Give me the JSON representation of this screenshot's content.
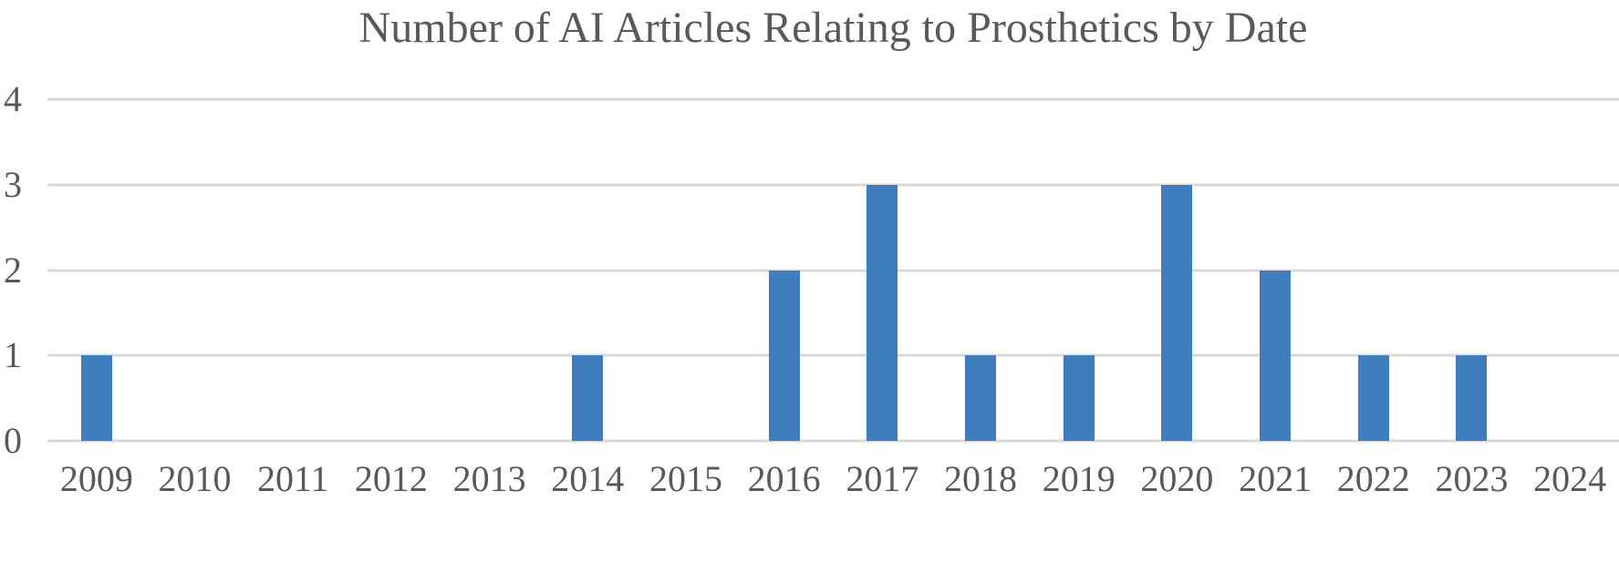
{
  "chart_data": {
    "type": "bar",
    "title": "Number of AI Articles Relating to Prosthetics by Date",
    "categories": [
      "2009",
      "2010",
      "2011",
      "2012",
      "2013",
      "2014",
      "2015",
      "2016",
      "2017",
      "2018",
      "2019",
      "2020",
      "2021",
      "2022",
      "2023",
      "2024"
    ],
    "values": [
      1,
      0,
      0,
      0,
      0,
      1,
      0,
      2,
      3,
      1,
      1,
      3,
      2,
      1,
      1,
      0
    ],
    "xlabel": "",
    "ylabel": "",
    "ylim": [
      0,
      4
    ],
    "yticks": [
      0,
      1,
      2,
      3,
      4
    ],
    "grid": true,
    "legend": false,
    "colors": {
      "bar": "#3F7DBF",
      "text": "#595959",
      "gridline": "#D9D9D9",
      "background": "#FFFFFF"
    }
  }
}
